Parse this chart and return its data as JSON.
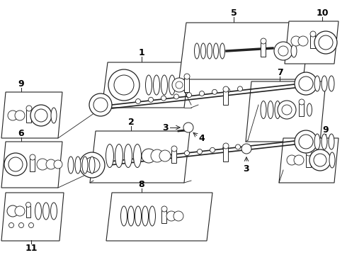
{
  "bg_color": "#ffffff",
  "line_color": "#000000",
  "fig_width": 4.9,
  "fig_height": 3.6,
  "dpi": 100
}
